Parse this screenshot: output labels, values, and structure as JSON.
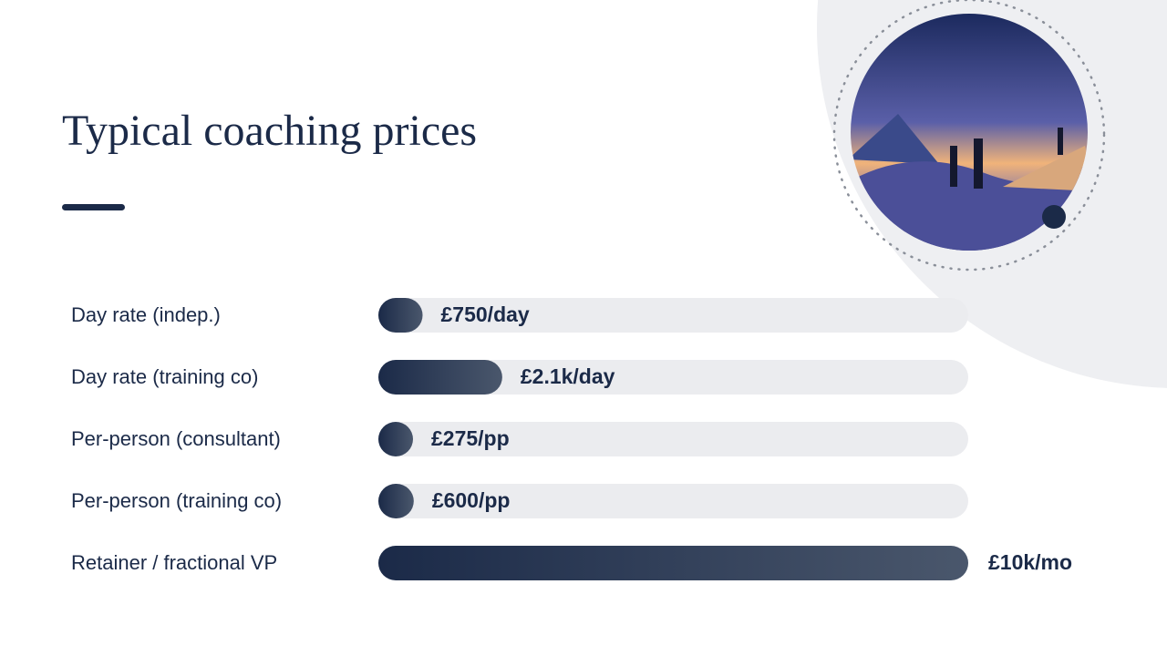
{
  "chart_data": {
    "type": "bar",
    "title": "Typical coaching prices",
    "categories": [
      "Day rate (indep.)",
      "Day rate (training co)",
      "Per-person (consultant)",
      "Per-person (training co)",
      "Retainer / fractional VP"
    ],
    "values": [
      750,
      2100,
      275,
      600,
      10000
    ],
    "value_labels": [
      "£750/day",
      "£2.1k/day",
      "£275/pp",
      "£600/pp",
      "£10k/mo"
    ],
    "xlim": [
      0,
      10000
    ],
    "color": "#1b2a48"
  }
}
